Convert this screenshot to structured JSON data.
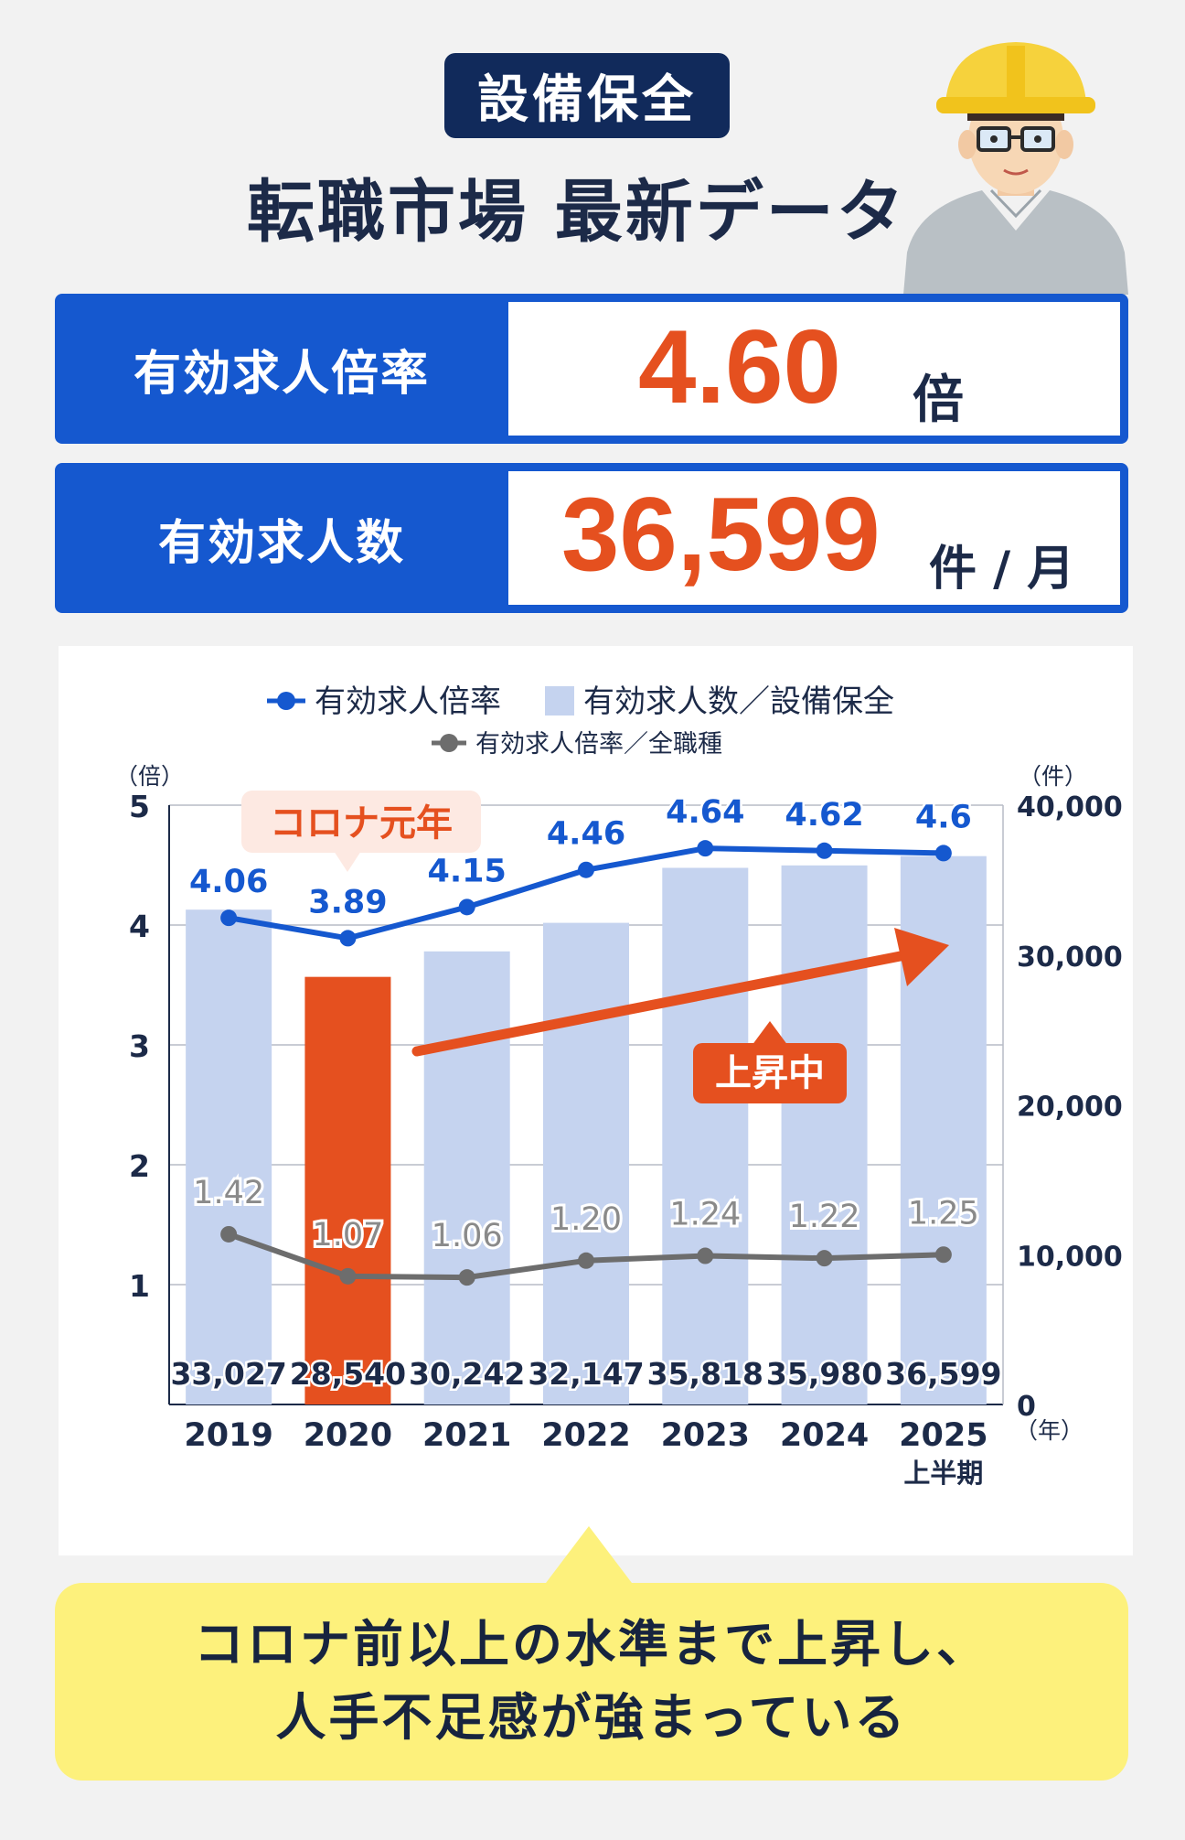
{
  "header": {
    "category": "設備保全",
    "title": "転職市場 最新データ"
  },
  "stats": {
    "ratio": {
      "label": "有効求人倍率",
      "value": "4.60",
      "unit": "倍"
    },
    "postings": {
      "label": "有効求人数",
      "value": "36,599",
      "unit": "件 / 月"
    }
  },
  "chart_data": {
    "type": "bar",
    "categories": [
      "2019",
      "2020",
      "2021",
      "2022",
      "2023",
      "2024",
      "2025"
    ],
    "category_sublabels": [
      "",
      "",
      "",
      "",
      "",
      "",
      "上半期"
    ],
    "series": [
      {
        "name": "有効求人数／設備保全",
        "kind": "bar",
        "axis": "right",
        "values": [
          33027,
          28540,
          30242,
          32147,
          35818,
          35980,
          36599
        ],
        "labels": [
          "33,027",
          "28,540",
          "30,242",
          "32,147",
          "35,818",
          "35,980",
          "36,599"
        ]
      },
      {
        "name": "有効求人倍率",
        "kind": "line",
        "axis": "left",
        "values": [
          4.06,
          3.89,
          4.15,
          4.46,
          4.64,
          4.62,
          4.6
        ],
        "labels": [
          "4.06",
          "3.89",
          "4.15",
          "4.46",
          "4.64",
          "4.62",
          "4.6"
        ]
      },
      {
        "name": "有効求人倍率／全職種",
        "kind": "line",
        "axis": "left",
        "values": [
          1.42,
          1.07,
          1.06,
          1.2,
          1.24,
          1.22,
          1.25
        ],
        "labels": [
          "1.42",
          "1.07",
          "1.06",
          "1.20",
          "1.24",
          "1.22",
          "1.25"
        ]
      }
    ],
    "highlight_index": 1,
    "left_axis": {
      "unit": "（倍）",
      "ylim": [
        0,
        5
      ],
      "ticks": [
        "1",
        "2",
        "3",
        "4",
        "5"
      ]
    },
    "right_axis": {
      "unit": "（件）",
      "ylim": [
        0,
        40000
      ],
      "ticks": [
        "0",
        "10,000",
        "20,000",
        "30,000",
        "40,000"
      ]
    },
    "x_unit": "（年）",
    "grid": true,
    "legend": "top",
    "annotations": {
      "covid": "コロナ元年",
      "rising": "上昇中"
    },
    "colors": {
      "bar": "#c5d3ef",
      "bar_highlight": "#e5501f",
      "line_main": "#1558cf",
      "line_all": "#6d6d6d",
      "arrow": "#e5501f",
      "covid_bg": "#fde9e2"
    }
  },
  "callout": {
    "line1": "コロナ前以上の水準まで上昇し、",
    "line2": "人手不足感が強まっている"
  }
}
